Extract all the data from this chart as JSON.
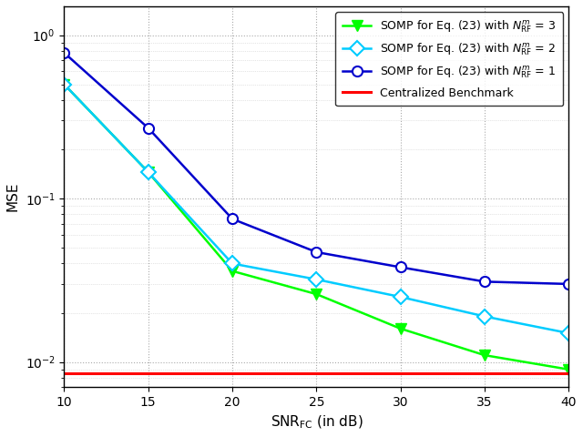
{
  "snr": [
    10,
    15,
    20,
    25,
    30,
    35,
    40
  ],
  "nrf3": [
    0.5,
    0.145,
    0.036,
    0.026,
    0.016,
    0.011,
    0.009
  ],
  "nrf2": [
    0.5,
    0.145,
    0.04,
    0.032,
    0.025,
    0.019,
    0.015
  ],
  "nrf1": [
    0.78,
    0.27,
    0.075,
    0.047,
    0.038,
    0.031,
    0.03
  ],
  "benchmark": 0.0085,
  "colors": {
    "nrf3": "#00FF00",
    "nrf2": "#00CCFF",
    "nrf1": "#0000CC",
    "benchmark": "#FF0000"
  },
  "ylabel": "MSE",
  "xlabel": "SNR$_{\\mathrm{FC}}$ (in dB)",
  "ylim_low": 0.007,
  "ylim_high": 1.5,
  "xlim_low": 10,
  "xlim_high": 40,
  "legend_nrf3": "SOMP for Eq. (23) with $N_{\\mathrm{RF}}^{m}$ = 3",
  "legend_nrf2": "SOMP for Eq. (23) with $N_{\\mathrm{RF}}^{m}$ = 2",
  "legend_nrf1": "SOMP for Eq. (23) with $N_{\\mathrm{RF}}^{m}$ = 1",
  "legend_bench": "Centralized Benchmark",
  "figsize": [
    6.4,
    4.8
  ],
  "dpi": 100
}
